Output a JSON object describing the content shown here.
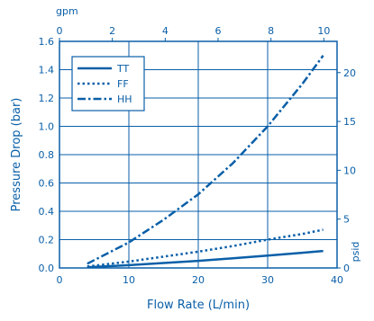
{
  "colors": {
    "primary": "#0a5fa8",
    "grid": "#0a5fa8",
    "background": "#ffffff"
  },
  "chart_data": {
    "type": "line",
    "xlabel": "Flow Rate (L/min)",
    "ylabel": "Pressure Drop (bar)",
    "top_axis_unit": "gpm",
    "right_axis_unit": "psid",
    "xlim": [
      0,
      40
    ],
    "ylim": [
      0,
      1.6
    ],
    "top_xlim": [
      0,
      10.5
    ],
    "right_ylim": [
      0,
      23.2
    ],
    "x_ticks": [
      "0",
      "10",
      "20",
      "30",
      "40"
    ],
    "y_ticks": [
      "0.0",
      "0.2",
      "0.4",
      "0.6",
      "0.8",
      "1.0",
      "1.2",
      "1.4",
      "1.6"
    ],
    "top_ticks": [
      "0",
      "2",
      "4",
      "6",
      "8",
      "10"
    ],
    "right_ticks": [
      "0",
      "5",
      "10",
      "15",
      "20"
    ],
    "grid": true,
    "legend_position": "top-left",
    "series": [
      {
        "name": "TT",
        "style": "solid",
        "x": [
          4,
          10,
          15,
          20,
          25,
          30,
          35,
          38
        ],
        "y": [
          0.005,
          0.02,
          0.035,
          0.05,
          0.068,
          0.087,
          0.107,
          0.12
        ]
      },
      {
        "name": "FF",
        "style": "dotted",
        "x": [
          4,
          10,
          15,
          20,
          25,
          30,
          35,
          38
        ],
        "y": [
          0.01,
          0.045,
          0.08,
          0.115,
          0.155,
          0.2,
          0.24,
          0.27
        ]
      },
      {
        "name": "HH",
        "style": "dashdot",
        "x": [
          4,
          10,
          15,
          20,
          25,
          30,
          35,
          38
        ],
        "y": [
          0.03,
          0.18,
          0.34,
          0.52,
          0.74,
          1.0,
          1.3,
          1.5
        ]
      }
    ]
  }
}
